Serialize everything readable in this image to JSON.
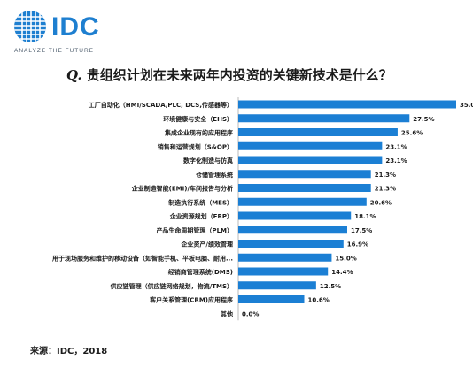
{
  "logo": {
    "wordmark": "IDC",
    "tagline": "ANALYZE THE FUTURE"
  },
  "question": {
    "prefix": "Q.",
    "text": "贵组织计划在未来两年内投资的关键新技术是什么？"
  },
  "source": "来源：IDC，2018",
  "colors": {
    "bar": "#1b7fd4",
    "text": "#1a1a1a",
    "axis": "#bbbbbb",
    "logo": "#1e7fd0"
  },
  "chart_data": {
    "type": "bar",
    "orientation": "horizontal",
    "title": "",
    "xlabel": "",
    "ylabel": "",
    "grid": false,
    "legend": "none",
    "xlim": [
      0,
      35
    ],
    "categories": [
      "工厂自动化（HMI/SCADA,PLC, DCS,传感器等）",
      "环境健康与安全（EHS）",
      "集成企业现有的应用程序",
      "销售和运营规划（S&OP）",
      "数字化制造与仿真",
      "仓储管理系统",
      "企业制造智能(EMI)/车间报告与分析",
      "制造执行系统（MES）",
      "企业资源规划（ERP）",
      "产品生命周期管理（PLM）",
      "企业资产/绩效管理",
      "用于现场服务和维护的移动设备（如智能手机、平板电脑、耐用...",
      "经销商管理系统(DMS)",
      "供应链管理（供应链网络规划，物流/TMS）",
      "客户关系管理(CRM)应用程序",
      "其他"
    ],
    "values": [
      35.0,
      27.5,
      25.6,
      23.1,
      23.1,
      21.3,
      21.3,
      20.6,
      18.1,
      17.5,
      16.9,
      15.0,
      14.4,
      12.5,
      10.6,
      0.0
    ],
    "value_labels": [
      "35.0%",
      "27.5%",
      "25.6%",
      "23.1%",
      "23.1%",
      "21.3%",
      "21.3%",
      "20.6%",
      "18.1%",
      "17.5%",
      "16.9%",
      "15.0%",
      "14.4%",
      "12.5%",
      "10.6%",
      "0.0%"
    ]
  }
}
